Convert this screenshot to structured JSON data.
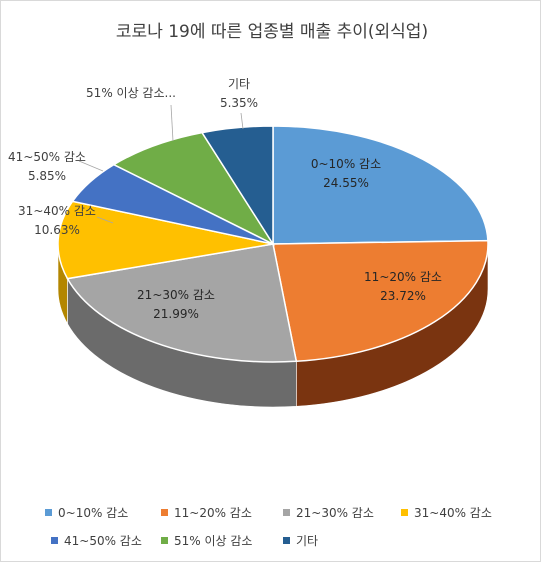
{
  "chart_data": {
    "type": "pie",
    "title": "코로나 19에 따른 업종별 매출 추이(외식업)",
    "slices": [
      {
        "name": "0~10% 감소",
        "label": "0~10% 감소",
        "value": 24.55,
        "value_label": "24.55%",
        "color": "#5b9bd5",
        "side": "#2e5f8f"
      },
      {
        "name": "11~20% 감소",
        "label": "11~20% 감소",
        "value": 23.72,
        "value_label": "23.72%",
        "color": "#ed7d31",
        "side": "#7a3410"
      },
      {
        "name": "21~30% 감소",
        "label": "21~30% 감소",
        "value": 21.99,
        "value_label": "21.99%",
        "color": "#a5a5a5",
        "side": "#6b6b6b"
      },
      {
        "name": "31~40% 감소",
        "label": "31~40% 감소",
        "value": 10.63,
        "value_label": "10.63%",
        "color": "#ffc000",
        "side": "#b38600"
      },
      {
        "name": "41~50% 감소",
        "label": "41~50% 감소",
        "value": 5.85,
        "value_label": "5.85%",
        "color": "#4472c4",
        "side": "#2a4a85"
      },
      {
        "name": "51% 이상 감소",
        "label": "51% 이상 감소...",
        "value": 7.91,
        "value_label": "",
        "color": "#70ad47",
        "side": "#4a7a2c"
      },
      {
        "name": "기타",
        "label": "기타",
        "value": 5.35,
        "value_label": "5.35%",
        "color": "#255e91",
        "side": "#173a5c"
      }
    ],
    "legend_position": "bottom"
  }
}
